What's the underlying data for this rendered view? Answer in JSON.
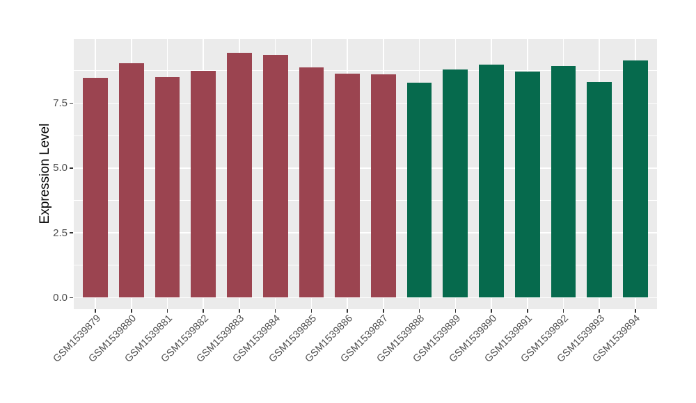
{
  "chart_data": {
    "type": "bar",
    "title": "",
    "xlabel": "",
    "ylabel": "Expression Level",
    "categories": [
      "GSM1539879",
      "GSM1539880",
      "GSM1539881",
      "GSM1539882",
      "GSM1539883",
      "GSM1539884",
      "GSM1539885",
      "GSM1539886",
      "GSM1539887",
      "GSM1539888",
      "GSM1539889",
      "GSM1539890",
      "GSM1539891",
      "GSM1539892",
      "GSM1539893",
      "GSM1539894"
    ],
    "values": [
      8.48,
      9.05,
      8.5,
      8.75,
      9.45,
      9.35,
      8.88,
      8.64,
      8.61,
      8.29,
      8.81,
      9.0,
      8.72,
      8.94,
      8.31,
      9.14
    ],
    "bar_groups": [
      "group1",
      "group1",
      "group1",
      "group1",
      "group1",
      "group1",
      "group1",
      "group1",
      "group1",
      "group2",
      "group2",
      "group2",
      "group2",
      "group2",
      "group2",
      "group2"
    ],
    "group_colors": {
      "group1": "#9B4450",
      "group2": "#066A4D"
    },
    "ylim": [
      0,
      9.96
    ],
    "yticks": [
      0.0,
      2.5,
      5.0,
      7.5
    ],
    "ytick_labels": [
      "0.0",
      "2.5",
      "5.0",
      "7.5"
    ],
    "minor_gridlines": [
      1.25,
      3.75,
      6.25,
      8.75
    ],
    "grid": "on",
    "legend": "none",
    "panel_background": "#EBEBEB",
    "gridline_color": "#FFFFFF",
    "tick_mark_color": "#333333",
    "tick_label_color": "#4D4D4D",
    "axis_title_color": "#000000"
  }
}
